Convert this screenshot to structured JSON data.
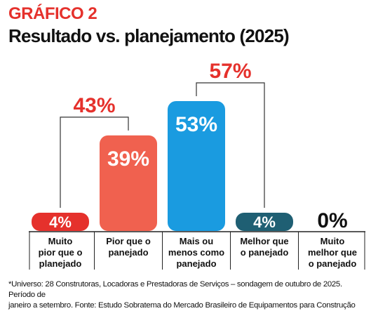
{
  "header": {
    "kicker": "GRÁFICO 2",
    "title": "Resultado vs. planejamento (2025)"
  },
  "chart_data": {
    "type": "bar",
    "categories": [
      [
        "Muito",
        "pior que o",
        "planejado"
      ],
      [
        "Pior que o",
        "panejado"
      ],
      [
        "Mais ou",
        "menos como",
        "panejado"
      ],
      [
        "Melhor que",
        "o panejado"
      ],
      [
        "Muito",
        "melhor que",
        "o panejado"
      ]
    ],
    "values": [
      4,
      39,
      53,
      4,
      0
    ],
    "value_labels": [
      "4%",
      "39%",
      "53%",
      "4%",
      "0%"
    ],
    "colors": [
      "#e5312c",
      "#f0614f",
      "#1a9be0",
      "#1f5f73",
      "#ffffff"
    ],
    "ylim": [
      0,
      53
    ],
    "groups": [
      {
        "label": "43%",
        "members": [
          0,
          1
        ],
        "value": 43
      },
      {
        "label": "57%",
        "members": [
          2,
          3
        ],
        "value": 57
      }
    ],
    "group_label_color": "#e5312c"
  },
  "footnote": {
    "line1": "*Universo: 28 Construtoras, Locadoras e Prestadoras de Serviços – sondagem de outubro de 2025. Período de",
    "line2": "janeiro a setembro. Fonte: Estudo Sobratema do Mercado Brasileiro de Equipamentos para Construção"
  }
}
